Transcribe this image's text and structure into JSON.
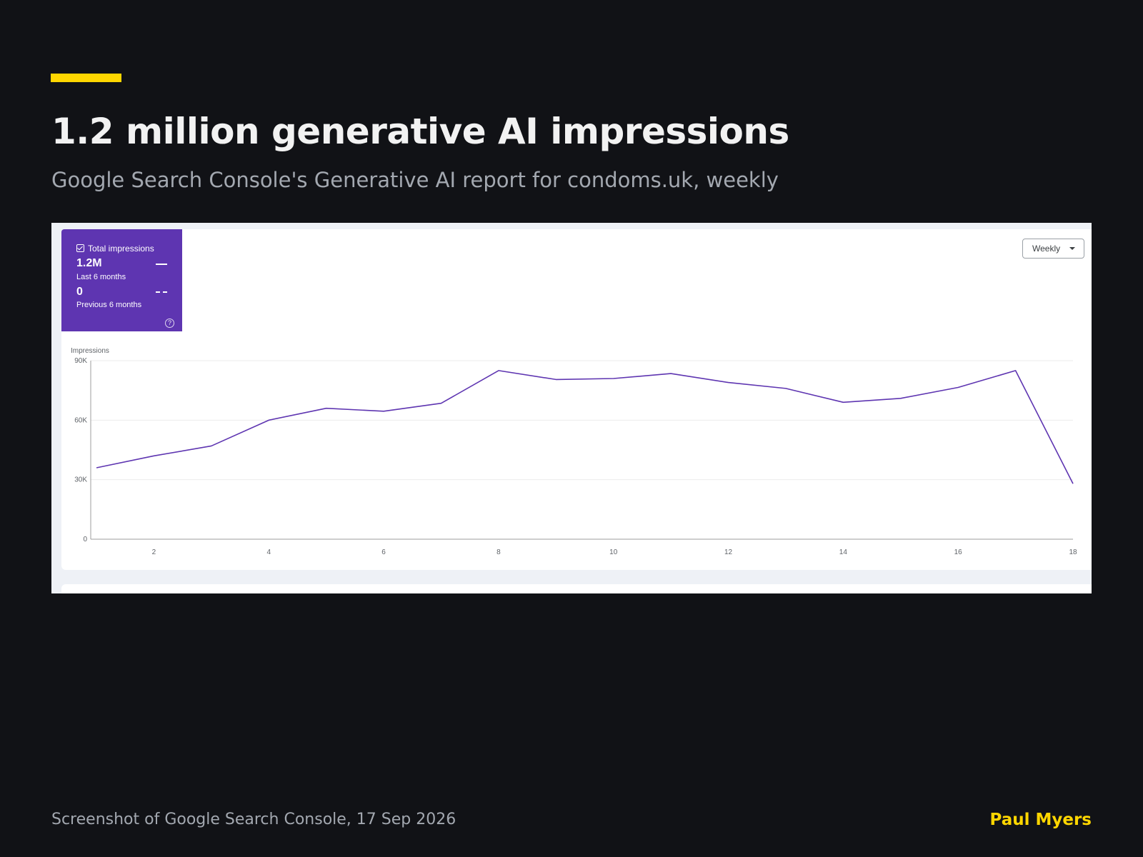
{
  "slide": {
    "title": "1.2 million generative AI impressions",
    "subtitle": "Google Search Console's Generative AI report for condoms.uk, weekly"
  },
  "metric": {
    "label": "Total impressions",
    "checked": true,
    "current_value": "1.2M",
    "current_period": "Last 6 months",
    "previous_value": "0",
    "previous_period": "Previous 6 months",
    "help_icon": "help-circle-icon"
  },
  "controls": {
    "granularity": "Weekly"
  },
  "colors": {
    "accent": "#ffd600",
    "series": "#5e35b1",
    "background": "#111216"
  },
  "chart_data": {
    "type": "line",
    "ylabel": "Impressions",
    "ylim": [
      0,
      90000
    ],
    "yticks": [
      "0",
      "30K",
      "60K",
      "90K"
    ],
    "xticks": [
      "2",
      "4",
      "6",
      "8",
      "10",
      "12",
      "14",
      "16",
      "18"
    ],
    "grid": true,
    "x": [
      1,
      2,
      3,
      4,
      5,
      6,
      7,
      8,
      9,
      10,
      11,
      12,
      13,
      14,
      15,
      16,
      17,
      18
    ],
    "series": [
      {
        "values": [
          36000,
          42000,
          47000,
          60000,
          66000,
          64500,
          68500,
          85000,
          80500,
          81000,
          83500,
          79000,
          76000,
          69000,
          71000,
          76500,
          85000,
          28000
        ]
      }
    ]
  },
  "footer": {
    "caption": "Screenshot of Google Search Console, 17 Sep 2026",
    "author": "Paul Myers"
  }
}
